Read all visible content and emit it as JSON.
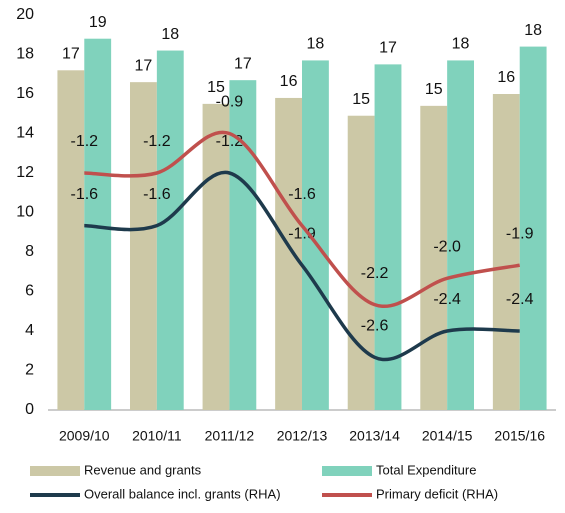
{
  "chart_data": {
    "type": "bar-line",
    "categories": [
      "2009/10",
      "2010/11",
      "2011/12",
      "2012/13",
      "2013/14",
      "2014/15",
      "2015/16"
    ],
    "ylim": [
      0,
      20
    ],
    "yticks": [
      0,
      2,
      4,
      6,
      8,
      10,
      12,
      14,
      16,
      18,
      20
    ],
    "y2lim": [
      -3,
      0
    ],
    "series": [
      {
        "name": "Revenue and grants",
        "type": "bar",
        "color": "#ccc8a6",
        "values": [
          17.2,
          16.6,
          15.5,
          15.8,
          14.9,
          15.4,
          16.0
        ],
        "value_labels": [
          "17",
          "17",
          "15",
          "16",
          "15",
          "15",
          "16"
        ]
      },
      {
        "name": "Total Expenditure",
        "type": "bar",
        "color": "#80d2bc",
        "values": [
          18.8,
          18.2,
          16.7,
          17.7,
          17.5,
          17.7,
          18.4
        ],
        "value_labels": [
          "19",
          "18",
          "17",
          "18",
          "17",
          "18",
          "18"
        ]
      },
      {
        "name": "Overall balance incl. grants (RHA)",
        "type": "line",
        "axis": "y2",
        "color": "#1e3a4c",
        "values": [
          -1.6,
          -1.6,
          -1.2,
          -1.9,
          -2.6,
          -2.4,
          -2.4
        ],
        "value_labels": [
          "-1.6",
          "-1.6",
          "-1.2",
          "-1.9",
          "-2.6",
          "-2.4",
          "-2.4"
        ]
      },
      {
        "name": "Primary deficit (RHA)",
        "type": "line",
        "axis": "y2",
        "color": "#c0504d",
        "values": [
          -1.2,
          -1.2,
          -0.9,
          -1.6,
          -2.2,
          -2.0,
          -1.9
        ],
        "value_labels": [
          "-1.2",
          "-1.2",
          "-0.9",
          "-1.6",
          "-2.2",
          "-2.0",
          "-1.9"
        ]
      }
    ]
  }
}
